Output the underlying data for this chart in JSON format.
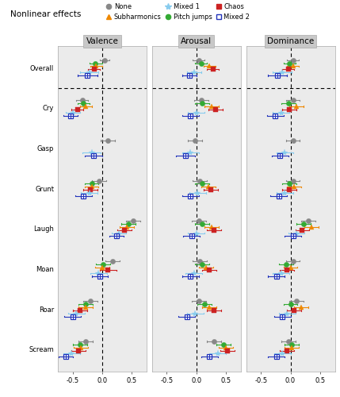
{
  "title": "Nonlinear effects",
  "panels": [
    "Valence",
    "Arousal",
    "Dominance"
  ],
  "categories": [
    "Overall",
    "Cry",
    "Gasp",
    "Grunt",
    "Laugh",
    "Moan",
    "Roar",
    "Scream"
  ],
  "effects": [
    "None",
    "Pitch jumps",
    "Subharmonics",
    "Chaos",
    "Mixed 1",
    "Mixed 2"
  ],
  "effect_order_in_group": [
    "None",
    "Pitch jumps",
    "Subharmonics",
    "Chaos",
    "Mixed 1",
    "Mixed 2"
  ],
  "colors": {
    "None": "#888888",
    "Pitch jumps": "#33aa33",
    "Subharmonics": "#ee8800",
    "Chaos": "#cc2222",
    "Mixed 1": "#88ccee",
    "Mixed 2": "#2233bb"
  },
  "data": {
    "Valence": {
      "Overall": {
        "None": [
          0.04,
          -0.04,
          0.12
        ],
        "Pitch jumps": [
          -0.12,
          -0.22,
          0.0
        ],
        "Subharmonics": [
          -0.1,
          -0.2,
          0.0
        ],
        "Chaos": [
          -0.14,
          -0.24,
          -0.04
        ],
        "Mixed 1": [
          -0.22,
          -0.38,
          -0.06
        ],
        "Mixed 2": [
          -0.25,
          -0.42,
          -0.08
        ]
      },
      "Cry": {
        "None": [
          -0.34,
          -0.44,
          -0.24
        ],
        "Pitch jumps": [
          -0.32,
          -0.42,
          -0.22
        ],
        "Subharmonics": [
          -0.28,
          -0.38,
          -0.18
        ],
        "Chaos": [
          -0.42,
          -0.52,
          -0.32
        ],
        "Mixed 1": [
          -0.5,
          -0.62,
          -0.38
        ],
        "Mixed 2": [
          -0.54,
          -0.66,
          -0.42
        ]
      },
      "Gasp": {
        "None": [
          0.1,
          -0.02,
          0.22
        ],
        "Pitch jumps": null,
        "Subharmonics": null,
        "Chaos": null,
        "Mixed 1": [
          -0.18,
          -0.34,
          -0.02
        ],
        "Mixed 2": [
          -0.15,
          -0.3,
          0.0
        ]
      },
      "Grunt": {
        "None": [
          -0.05,
          -0.17,
          0.07
        ],
        "Pitch jumps": [
          -0.18,
          -0.3,
          -0.06
        ],
        "Subharmonics": [
          -0.18,
          -0.3,
          -0.06
        ],
        "Chaos": [
          -0.2,
          -0.32,
          -0.08
        ],
        "Mixed 1": [
          -0.22,
          -0.36,
          -0.08
        ],
        "Mixed 2": [
          -0.32,
          -0.46,
          -0.18
        ]
      },
      "Laugh": {
        "None": [
          0.52,
          0.4,
          0.64
        ],
        "Pitch jumps": [
          0.44,
          0.32,
          0.56
        ],
        "Subharmonics": [
          0.42,
          0.3,
          0.54
        ],
        "Chaos": [
          0.38,
          0.26,
          0.5
        ],
        "Mixed 1": [
          0.28,
          0.16,
          0.4
        ],
        "Mixed 2": [
          0.24,
          0.12,
          0.36
        ]
      },
      "Moan": {
        "None": [
          0.18,
          0.06,
          0.3
        ],
        "Pitch jumps": [
          0.02,
          -0.1,
          0.14
        ],
        "Subharmonics": [
          0.0,
          -0.12,
          0.12
        ],
        "Chaos": [
          0.1,
          -0.04,
          0.24
        ],
        "Mixed 1": [
          -0.06,
          -0.2,
          0.08
        ],
        "Mixed 2": [
          -0.04,
          -0.18,
          0.1
        ]
      },
      "Roar": {
        "None": [
          -0.2,
          -0.32,
          -0.08
        ],
        "Pitch jumps": [
          -0.28,
          -0.4,
          -0.16
        ],
        "Subharmonics": [
          -0.28,
          -0.4,
          -0.16
        ],
        "Chaos": [
          -0.38,
          -0.5,
          -0.26
        ],
        "Mixed 1": [
          -0.44,
          -0.58,
          -0.3
        ],
        "Mixed 2": [
          -0.5,
          -0.64,
          -0.36
        ]
      },
      "Scream": {
        "None": [
          -0.28,
          -0.4,
          -0.16
        ],
        "Pitch jumps": [
          -0.38,
          -0.5,
          -0.26
        ],
        "Subharmonics": [
          -0.36,
          -0.48,
          -0.24
        ],
        "Chaos": [
          -0.4,
          -0.52,
          -0.28
        ],
        "Mixed 1": [
          -0.52,
          -0.66,
          -0.38
        ],
        "Mixed 2": [
          -0.62,
          -0.74,
          -0.5
        ]
      }
    },
    "Arousal": {
      "Overall": {
        "None": [
          0.04,
          -0.06,
          0.14
        ],
        "Pitch jumps": [
          0.08,
          -0.02,
          0.18
        ],
        "Subharmonics": [
          0.22,
          0.12,
          0.32
        ],
        "Chaos": [
          0.28,
          0.18,
          0.38
        ],
        "Mixed 1": [
          -0.04,
          -0.16,
          0.08
        ],
        "Mixed 2": [
          -0.12,
          -0.24,
          0.0
        ]
      },
      "Cry": {
        "None": [
          0.08,
          -0.04,
          0.2
        ],
        "Pitch jumps": [
          0.1,
          -0.02,
          0.22
        ],
        "Subharmonics": [
          0.26,
          0.14,
          0.38
        ],
        "Chaos": [
          0.32,
          0.2,
          0.44
        ],
        "Mixed 1": [
          0.0,
          -0.14,
          0.14
        ],
        "Mixed 2": [
          -0.1,
          -0.24,
          0.04
        ]
      },
      "Gasp": {
        "None": [
          -0.02,
          -0.14,
          0.1
        ],
        "Pitch jumps": null,
        "Subharmonics": null,
        "Chaos": null,
        "Mixed 1": [
          -0.1,
          -0.24,
          0.04
        ],
        "Mixed 2": [
          -0.18,
          -0.34,
          -0.02
        ]
      },
      "Grunt": {
        "None": [
          0.06,
          -0.06,
          0.18
        ],
        "Pitch jumps": [
          0.1,
          -0.02,
          0.22
        ],
        "Subharmonics": [
          0.2,
          0.08,
          0.32
        ],
        "Chaos": [
          0.24,
          0.12,
          0.36
        ],
        "Mixed 1": [
          0.02,
          -0.12,
          0.16
        ],
        "Mixed 2": [
          -0.1,
          -0.24,
          0.04
        ]
      },
      "Laugh": {
        "None": [
          0.04,
          -0.08,
          0.16
        ],
        "Pitch jumps": [
          0.1,
          -0.02,
          0.22
        ],
        "Subharmonics": [
          0.26,
          0.14,
          0.38
        ],
        "Chaos": [
          0.3,
          0.18,
          0.42
        ],
        "Mixed 1": [
          0.0,
          -0.14,
          0.14
        ],
        "Mixed 2": [
          -0.08,
          -0.22,
          0.06
        ]
      },
      "Moan": {
        "None": [
          0.06,
          -0.06,
          0.18
        ],
        "Pitch jumps": [
          0.1,
          -0.02,
          0.22
        ],
        "Subharmonics": [
          0.16,
          0.04,
          0.28
        ],
        "Chaos": [
          0.22,
          0.1,
          0.34
        ],
        "Mixed 1": [
          -0.04,
          -0.18,
          0.1
        ],
        "Mixed 2": [
          -0.1,
          -0.24,
          0.04
        ]
      },
      "Roar": {
        "None": [
          0.04,
          -0.08,
          0.16
        ],
        "Pitch jumps": [
          0.14,
          0.02,
          0.26
        ],
        "Subharmonics": [
          0.22,
          0.1,
          0.34
        ],
        "Chaos": [
          0.3,
          0.18,
          0.42
        ],
        "Mixed 1": [
          -0.02,
          -0.16,
          0.12
        ],
        "Mixed 2": [
          -0.16,
          -0.3,
          -0.02
        ]
      },
      "Scream": {
        "None": [
          0.3,
          0.18,
          0.42
        ],
        "Pitch jumps": [
          0.46,
          0.34,
          0.58
        ],
        "Subharmonics": [
          0.5,
          0.38,
          0.62
        ],
        "Chaos": [
          0.52,
          0.4,
          0.64
        ],
        "Mixed 1": [
          0.36,
          0.22,
          0.5
        ],
        "Mixed 2": [
          0.22,
          0.08,
          0.36
        ]
      }
    },
    "Dominance": {
      "Overall": {
        "None": [
          0.04,
          -0.06,
          0.14
        ],
        "Pitch jumps": [
          -0.02,
          -0.12,
          0.08
        ],
        "Subharmonics": [
          0.04,
          -0.06,
          0.14
        ],
        "Chaos": [
          -0.04,
          -0.14,
          0.06
        ],
        "Mixed 1": [
          -0.14,
          -0.3,
          0.02
        ],
        "Mixed 2": [
          -0.22,
          -0.38,
          -0.06
        ]
      },
      "Cry": {
        "None": [
          0.04,
          -0.08,
          0.16
        ],
        "Pitch jumps": [
          -0.04,
          -0.16,
          0.08
        ],
        "Subharmonics": [
          0.1,
          -0.02,
          0.22
        ],
        "Chaos": [
          -0.02,
          -0.14,
          0.1
        ],
        "Mixed 1": [
          -0.16,
          -0.3,
          -0.02
        ],
        "Mixed 2": [
          -0.26,
          -0.4,
          -0.12
        ]
      },
      "Gasp": {
        "None": [
          0.04,
          -0.08,
          0.16
        ],
        "Pitch jumps": null,
        "Subharmonics": null,
        "Chaos": null,
        "Mixed 1": [
          -0.1,
          -0.24,
          0.04
        ],
        "Mixed 2": [
          -0.18,
          -0.32,
          -0.04
        ]
      },
      "Grunt": {
        "None": [
          0.04,
          -0.08,
          0.16
        ],
        "Pitch jumps": [
          -0.02,
          -0.14,
          0.1
        ],
        "Subharmonics": [
          0.06,
          -0.06,
          0.18
        ],
        "Chaos": [
          -0.02,
          -0.14,
          0.1
        ],
        "Mixed 1": [
          -0.1,
          -0.24,
          0.04
        ],
        "Mixed 2": [
          -0.2,
          -0.34,
          -0.06
        ]
      },
      "Laugh": {
        "None": [
          0.3,
          0.18,
          0.42
        ],
        "Pitch jumps": [
          0.22,
          0.1,
          0.34
        ],
        "Subharmonics": [
          0.36,
          0.24,
          0.48
        ],
        "Chaos": [
          0.2,
          0.08,
          0.32
        ],
        "Mixed 1": [
          0.1,
          -0.04,
          0.24
        ],
        "Mixed 2": [
          0.04,
          -0.1,
          0.18
        ]
      },
      "Moan": {
        "None": [
          0.04,
          -0.08,
          0.16
        ],
        "Pitch jumps": [
          -0.08,
          -0.2,
          0.04
        ],
        "Subharmonics": [
          0.0,
          -0.12,
          0.12
        ],
        "Chaos": [
          -0.06,
          -0.18,
          0.06
        ],
        "Mixed 1": [
          -0.16,
          -0.3,
          -0.02
        ],
        "Mixed 2": [
          -0.24,
          -0.38,
          -0.1
        ]
      },
      "Roar": {
        "None": [
          0.1,
          -0.02,
          0.22
        ],
        "Pitch jumps": [
          0.0,
          -0.12,
          0.12
        ],
        "Subharmonics": [
          0.18,
          0.06,
          0.3
        ],
        "Chaos": [
          0.06,
          -0.06,
          0.18
        ],
        "Mixed 1": [
          -0.06,
          -0.2,
          0.08
        ],
        "Mixed 2": [
          -0.14,
          -0.28,
          0.0
        ]
      },
      "Scream": {
        "None": [
          -0.04,
          -0.16,
          0.08
        ],
        "Pitch jumps": [
          0.02,
          -0.1,
          0.14
        ],
        "Subharmonics": [
          0.02,
          -0.1,
          0.14
        ],
        "Chaos": [
          -0.06,
          -0.18,
          0.06
        ],
        "Mixed 1": [
          -0.14,
          -0.28,
          0.0
        ],
        "Mixed 2": [
          -0.24,
          -0.38,
          -0.1
        ]
      }
    }
  },
  "xlim": [
    -0.75,
    0.75
  ],
  "xticks": [
    -0.5,
    0.0,
    0.5
  ],
  "panel_bg": "#ebebeb",
  "fig_bg": "#ffffff"
}
